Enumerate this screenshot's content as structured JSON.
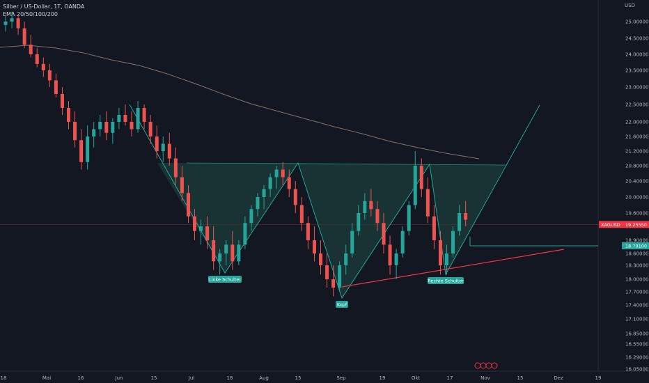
{
  "legend": {
    "title": "Silber / US-Dollar, 1T, OANDA",
    "indicator": "EMA 20/50/100/200"
  },
  "colors": {
    "background": "#131722",
    "up": "#26a69a",
    "down": "#ef5350",
    "pattern_fill": "#1f4a45",
    "pattern_stroke": "#26a69a",
    "neckline": "#f23645",
    "target": "#26a69a",
    "ema": "#a0887a",
    "current_price": "#f23645"
  },
  "chart_data": {
    "type": "candlestick",
    "title": "Silber / US-Dollar, 1T, OANDA",
    "currency": "USD",
    "y_ticks": [
      "25.00000",
      "24.50000",
      "24.00000",
      "23.50000",
      "23.00000",
      "22.50000",
      "22.00000",
      "21.60000",
      "21.20000",
      "20.80000",
      "20.40000",
      "20.00000",
      "19.60000",
      "19.20000",
      "18.90000",
      "18.60000",
      "18.30000",
      "18.00000",
      "17.70000",
      "17.40000",
      "17.10000",
      "16.85000",
      "16.55000",
      "16.29000",
      "16.05000"
    ],
    "x_ticks": [
      "18",
      "Mai",
      "16",
      "Jun",
      "15",
      "Jul",
      "18",
      "Aug",
      "15",
      "Sep",
      "19",
      "Okt",
      "17",
      "Nov",
      "15",
      "Dez",
      "19"
    ],
    "current_price": {
      "symbol": "XAGUSD",
      "value": "19.25550"
    },
    "target_price": {
      "value": "18.79100"
    },
    "annotations": [
      {
        "text": "Linke Schulter",
        "date": "2023-07-14",
        "price": 18.1
      },
      {
        "text": "Kopf",
        "date": "2023-09-01",
        "price": 17.5
      },
      {
        "text": "Rechte Schulter",
        "date": "2023-10-20",
        "price": 18.05
      }
    ],
    "ohlc": [
      [
        24.9,
        25.2,
        24.7,
        25.0
      ],
      [
        25.0,
        25.3,
        24.8,
        25.1
      ],
      [
        25.1,
        25.2,
        24.6,
        24.8
      ],
      [
        24.8,
        25.0,
        24.2,
        24.3
      ],
      [
        24.3,
        24.6,
        23.9,
        24.0
      ],
      [
        24.0,
        24.2,
        23.6,
        23.7
      ],
      [
        23.7,
        23.9,
        23.3,
        23.5
      ],
      [
        23.5,
        23.7,
        23.0,
        23.2
      ],
      [
        23.2,
        23.4,
        22.7,
        22.8
      ],
      [
        22.8,
        23.0,
        22.2,
        22.4
      ],
      [
        22.4,
        22.6,
        21.8,
        22.0
      ],
      [
        22.0,
        22.3,
        21.3,
        21.5
      ],
      [
        21.5,
        21.8,
        20.7,
        20.9
      ],
      [
        20.9,
        21.9,
        20.7,
        21.6
      ],
      [
        21.6,
        22.0,
        21.3,
        21.8
      ],
      [
        21.8,
        22.2,
        21.6,
        22.0
      ],
      [
        22.0,
        22.3,
        21.5,
        21.7
      ],
      [
        21.7,
        22.1,
        21.4,
        22.0
      ],
      [
        22.0,
        22.4,
        21.8,
        22.2
      ],
      [
        22.2,
        22.5,
        21.9,
        22.0
      ],
      [
        22.0,
        22.3,
        21.6,
        21.8
      ],
      [
        21.8,
        22.6,
        21.7,
        22.4
      ],
      [
        22.4,
        22.5,
        21.8,
        22.0
      ],
      [
        22.0,
        22.2,
        21.4,
        21.6
      ],
      [
        21.6,
        21.9,
        21.0,
        21.2
      ],
      [
        21.2,
        21.6,
        20.9,
        21.4
      ],
      [
        21.4,
        21.7,
        20.8,
        21.0
      ],
      [
        21.0,
        21.3,
        20.3,
        20.5
      ],
      [
        20.5,
        20.8,
        19.9,
        20.1
      ],
      [
        20.1,
        20.3,
        19.3,
        19.5
      ],
      [
        19.5,
        19.7,
        18.9,
        19.1
      ],
      [
        19.1,
        19.4,
        18.8,
        19.2
      ],
      [
        19.2,
        19.5,
        18.7,
        18.9
      ],
      [
        18.9,
        19.2,
        18.2,
        18.4
      ],
      [
        18.4,
        18.7,
        18.1,
        18.6
      ],
      [
        18.6,
        18.9,
        18.3,
        18.8
      ],
      [
        18.8,
        19.1,
        18.2,
        18.4
      ],
      [
        18.4,
        18.9,
        18.3,
        18.8
      ],
      [
        18.8,
        19.5,
        18.7,
        19.3
      ],
      [
        19.3,
        19.8,
        19.1,
        19.7
      ],
      [
        19.7,
        20.1,
        19.5,
        20.0
      ],
      [
        20.0,
        20.3,
        19.7,
        20.2
      ],
      [
        20.2,
        20.6,
        20.0,
        20.5
      ],
      [
        20.5,
        20.8,
        20.2,
        20.7
      ],
      [
        20.7,
        20.9,
        20.3,
        20.5
      ],
      [
        20.5,
        20.7,
        20.0,
        20.2
      ],
      [
        20.2,
        20.4,
        19.6,
        19.8
      ],
      [
        19.8,
        20.0,
        19.1,
        19.3
      ],
      [
        19.3,
        19.5,
        18.7,
        18.9
      ],
      [
        18.9,
        19.2,
        18.4,
        18.6
      ],
      [
        18.6,
        18.9,
        18.1,
        18.3
      ],
      [
        18.3,
        18.6,
        17.8,
        18.0
      ],
      [
        18.0,
        18.3,
        17.6,
        17.8
      ],
      [
        17.8,
        18.4,
        17.7,
        18.3
      ],
      [
        18.3,
        18.8,
        18.1,
        18.6
      ],
      [
        18.6,
        19.3,
        18.5,
        19.1
      ],
      [
        19.1,
        19.8,
        19.0,
        19.6
      ],
      [
        19.6,
        20.1,
        19.4,
        19.9
      ],
      [
        19.9,
        20.2,
        19.5,
        19.7
      ],
      [
        19.7,
        19.9,
        19.1,
        19.3
      ],
      [
        19.3,
        19.6,
        18.6,
        18.8
      ],
      [
        18.8,
        19.0,
        18.1,
        18.3
      ],
      [
        18.3,
        18.7,
        18.0,
        18.6
      ],
      [
        18.6,
        19.2,
        18.5,
        19.1
      ],
      [
        19.1,
        19.9,
        19.0,
        19.8
      ],
      [
        19.8,
        21.2,
        19.7,
        20.8
      ],
      [
        20.8,
        21.0,
        20.0,
        20.2
      ],
      [
        20.2,
        20.5,
        19.3,
        19.5
      ],
      [
        19.5,
        19.8,
        18.7,
        18.9
      ],
      [
        18.9,
        19.1,
        18.1,
        18.3
      ],
      [
        18.3,
        18.8,
        18.1,
        18.6
      ],
      [
        18.6,
        19.2,
        18.5,
        19.1
      ],
      [
        19.1,
        19.8,
        19.0,
        19.6
      ],
      [
        19.6,
        19.9,
        19.2,
        19.4
      ]
    ]
  }
}
